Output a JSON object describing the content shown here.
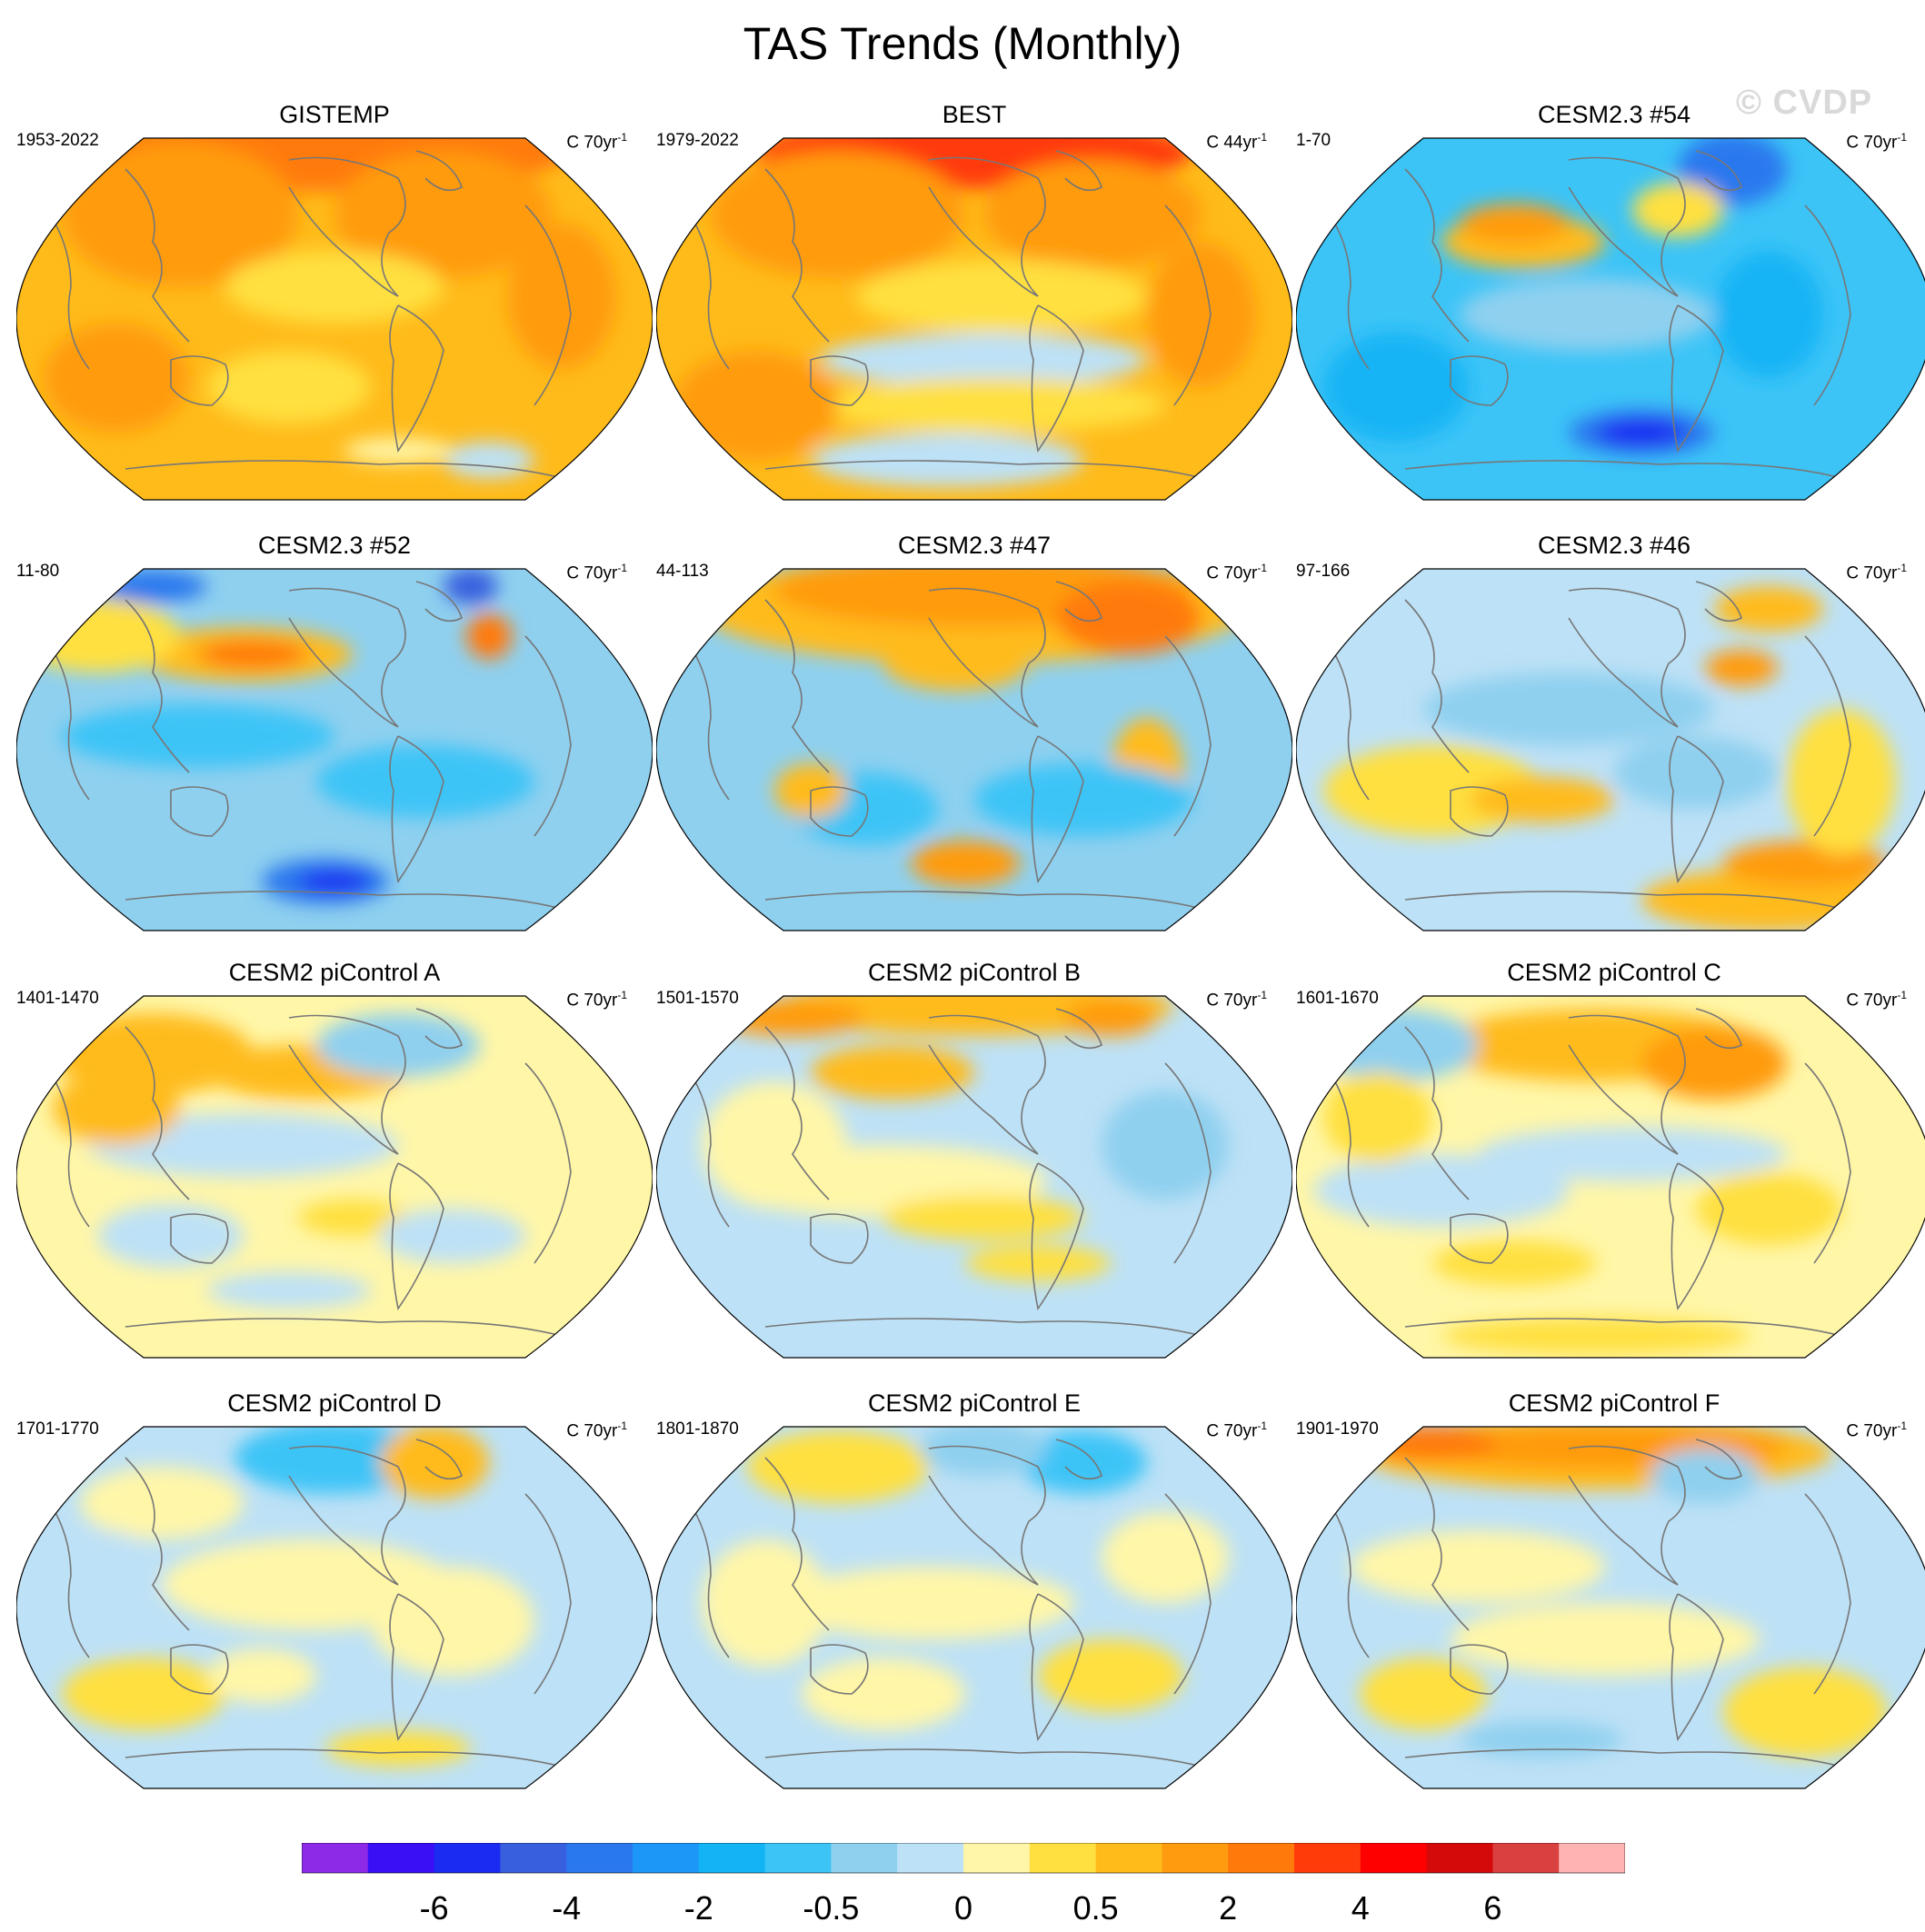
{
  "title": "TAS Trends (Monthly)",
  "watermark": "© CVDP",
  "panels": [
    {
      "title": "GISTEMP",
      "period": "1953-2022",
      "units_prefix": "C 70yr",
      "units_sup": "-1",
      "pattern": "warm_obs"
    },
    {
      "title": "BEST",
      "period": "1979-2022",
      "units_prefix": "C 44yr",
      "units_sup": "-1",
      "pattern": "warm_obs2"
    },
    {
      "title": "CESM2.3 #54",
      "period": "1-70",
      "units_prefix": "C 70yr",
      "units_sup": "-1",
      "pattern": "cool"
    },
    {
      "title": "CESM2.3 #52",
      "period": "11-80",
      "units_prefix": "C 70yr",
      "units_sup": "-1",
      "pattern": "cool2"
    },
    {
      "title": "CESM2.3 #47",
      "period": "44-113",
      "units_prefix": "C 70yr",
      "units_sup": "-1",
      "pattern": "warm_north"
    },
    {
      "title": "CESM2.3 #46",
      "period": "97-166",
      "units_prefix": "C 70yr",
      "units_sup": "-1",
      "pattern": "mixed"
    },
    {
      "title": "CESM2 piControl A",
      "period": "1401-1470",
      "units_prefix": "C 70yr",
      "units_sup": "-1",
      "pattern": "neutral_a"
    },
    {
      "title": "CESM2 piControl B",
      "period": "1501-1570",
      "units_prefix": "C 70yr",
      "units_sup": "-1",
      "pattern": "neutral_b"
    },
    {
      "title": "CESM2 piControl C",
      "period": "1601-1670",
      "units_prefix": "C 70yr",
      "units_sup": "-1",
      "pattern": "neutral_c"
    },
    {
      "title": "CESM2 piControl D",
      "period": "1701-1770",
      "units_prefix": "C 70yr",
      "units_sup": "-1",
      "pattern": "neutral_d"
    },
    {
      "title": "CESM2 piControl E",
      "period": "1801-1870",
      "units_prefix": "C 70yr",
      "units_sup": "-1",
      "pattern": "neutral_e"
    },
    {
      "title": "CESM2 piControl F",
      "period": "1901-1970",
      "units_prefix": "C 70yr",
      "units_sup": "-1",
      "pattern": "neutral_f"
    }
  ],
  "colorbar": {
    "colors": [
      "#8c2ae8",
      "#3a0ff5",
      "#1c2bf2",
      "#3860de",
      "#2a78ee",
      "#1c97f7",
      "#12b4f5",
      "#3cc4f7",
      "#8fd0ef",
      "#bde1f6",
      "#fff6a8",
      "#ffe040",
      "#ffbb1a",
      "#ff9b0f",
      "#ff7a0a",
      "#ff3b0a",
      "#ff0000",
      "#d40a0a",
      "#d94040",
      "#ffb3b3"
    ],
    "tick_labels": [
      "-6",
      "-4",
      "-2",
      "-0.5",
      "0",
      "0.5",
      "2",
      "4",
      "6"
    ]
  }
}
